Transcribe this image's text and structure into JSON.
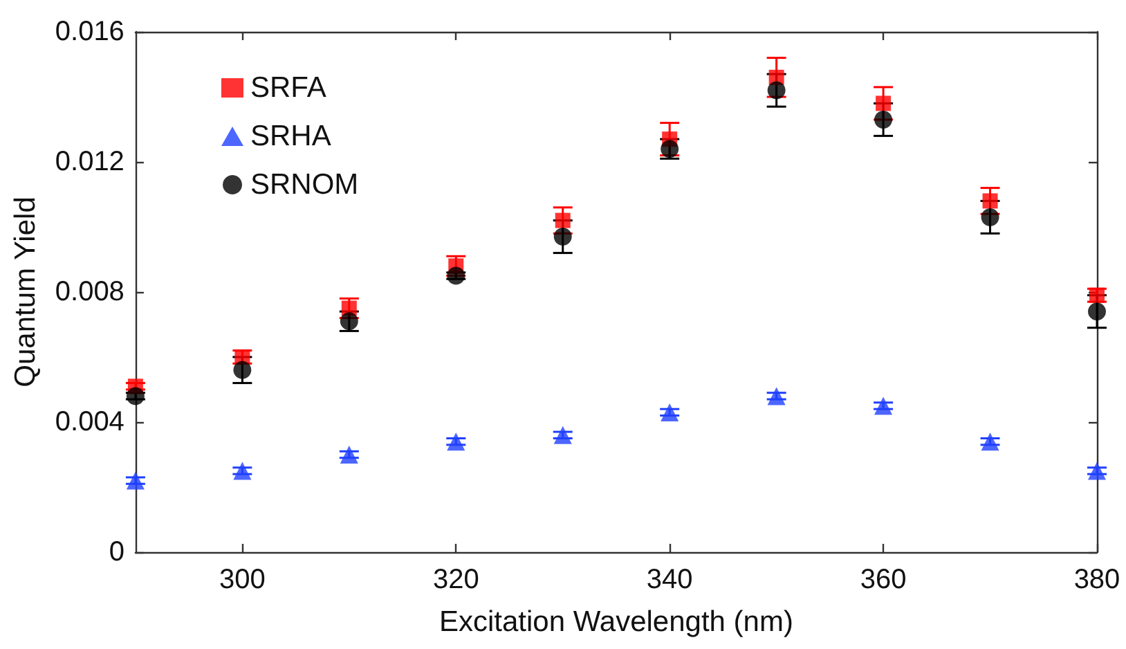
{
  "chart_data": {
    "type": "scatter",
    "xlabel": "Excitation Wavelength (nm)",
    "ylabel": "Quantum Yield",
    "x": [
      290,
      300,
      310,
      320,
      330,
      340,
      350,
      360,
      370,
      380
    ],
    "series": [
      {
        "name": "SRFA",
        "color": "#ff0000",
        "marker": "square",
        "values": [
          0.0051,
          0.006,
          0.0075,
          0.0088,
          0.0102,
          0.0127,
          0.0146,
          0.0138,
          0.0108,
          0.0079
        ],
        "errors": [
          0.0001,
          0.0002,
          0.0003,
          0.0003,
          0.0004,
          0.0005,
          0.0006,
          0.0005,
          0.0004,
          0.0002
        ]
      },
      {
        "name": "SRHA",
        "color": "#2040ff",
        "marker": "triangle",
        "values": [
          0.0022,
          0.0025,
          0.003,
          0.0034,
          0.0036,
          0.0043,
          0.0048,
          0.0045,
          0.0034,
          0.0025
        ],
        "errors": [
          0.0001,
          0.0001,
          0.0001,
          0.0001,
          0.0001,
          0.0001,
          0.0001,
          0.0001,
          0.0001,
          0.0001
        ]
      },
      {
        "name": "SRNOM",
        "color": "#000000",
        "marker": "circle",
        "values": [
          0.0048,
          0.0056,
          0.0071,
          0.0085,
          0.0097,
          0.0124,
          0.0142,
          0.0133,
          0.0103,
          0.0074
        ],
        "errors": [
          0.0001,
          0.0004,
          0.0003,
          0.0001,
          0.0005,
          0.0003,
          0.0005,
          0.0005,
          0.0005,
          0.0005
        ]
      }
    ],
    "xlim": [
      290,
      380
    ],
    "xticks": [
      300,
      320,
      340,
      360,
      380
    ],
    "ylim": [
      0,
      0.016
    ],
    "yticks": [
      0,
      0.004,
      0.008,
      0.012,
      0.016
    ],
    "grid": false,
    "legend": "top left"
  }
}
